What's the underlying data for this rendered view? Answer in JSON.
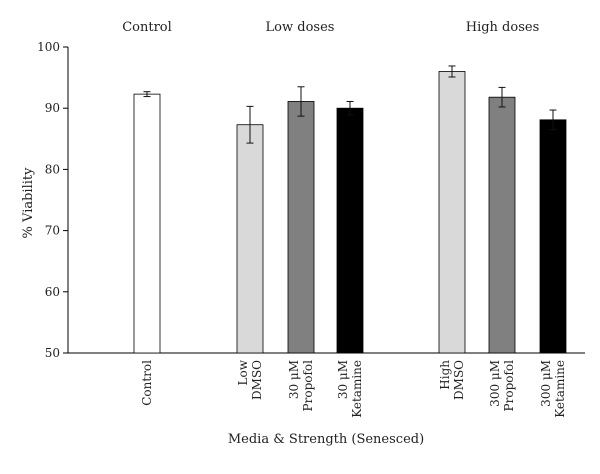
{
  "chart_data": {
    "type": "bar",
    "title": "",
    "xlabel": "Media & Strength (Senesced)",
    "ylabel": "% Viability",
    "ylim": [
      50,
      100
    ],
    "yticks": [
      50,
      60,
      70,
      80,
      90,
      100
    ],
    "grid": false,
    "groups": [
      {
        "label": "Control",
        "categories": [
          0
        ]
      },
      {
        "label": "Low doses",
        "categories": [
          1,
          2,
          3
        ]
      },
      {
        "label": "High doses",
        "categories": [
          4,
          5,
          6
        ]
      }
    ],
    "categories": [
      [
        "Control"
      ],
      [
        "Low",
        "DMSO"
      ],
      [
        "30 μM",
        "Propofol"
      ],
      [
        "30 μM",
        "Ketamine"
      ],
      [
        "High",
        "DMSO"
      ],
      [
        "300 μM",
        "Propofol"
      ],
      [
        "300 μM",
        "Ketamine"
      ]
    ],
    "values": [
      92.3,
      87.3,
      91.1,
      90.0,
      96.0,
      91.8,
      88.1
    ],
    "errors": [
      0.4,
      3.0,
      2.4,
      1.1,
      0.9,
      1.6,
      1.6
    ],
    "colors": [
      "#ffffff",
      "#d9d9d9",
      "#808080",
      "#000000",
      "#d9d9d9",
      "#808080",
      "#000000"
    ]
  }
}
